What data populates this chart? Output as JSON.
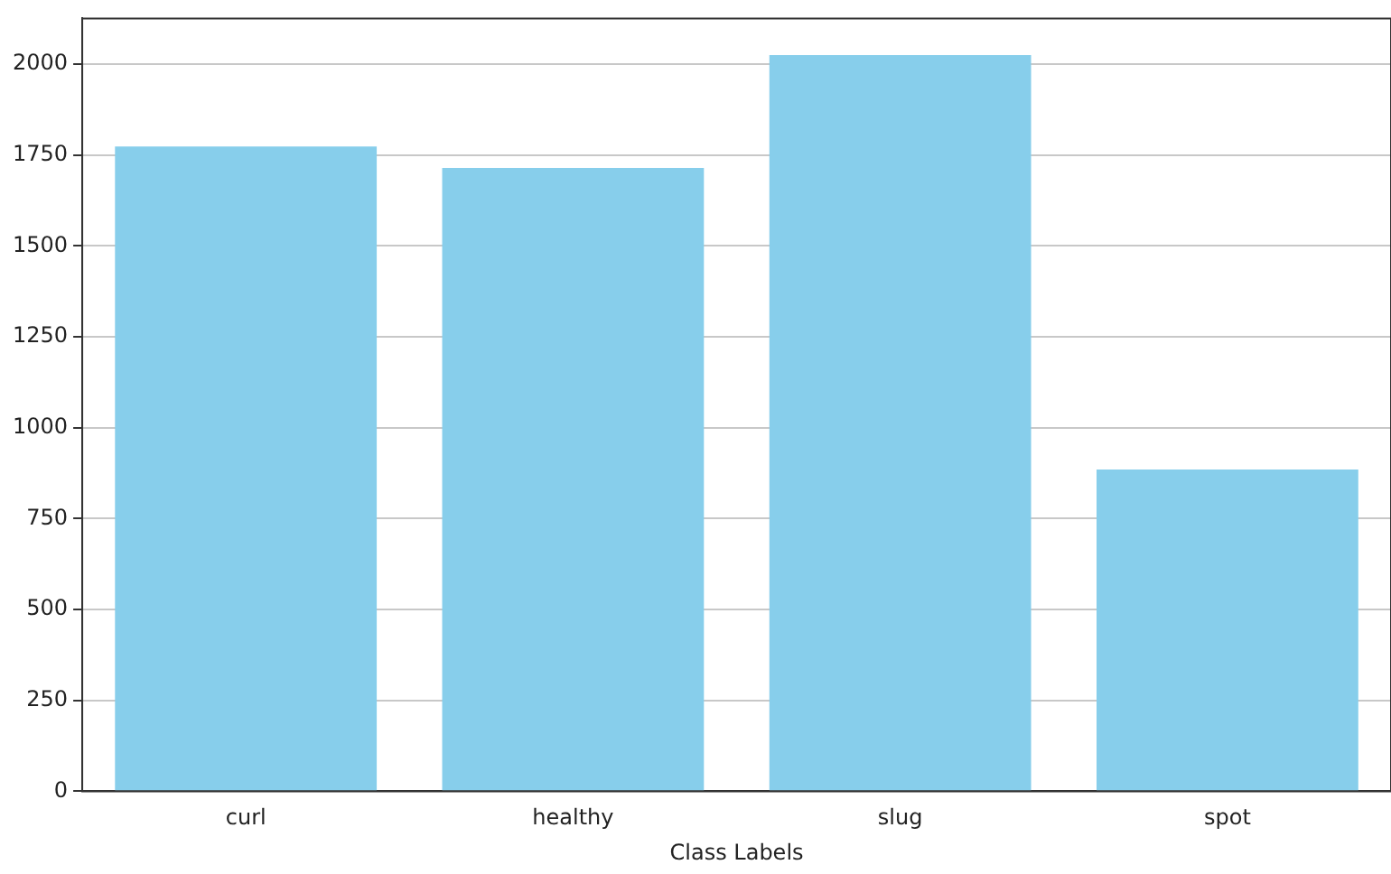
{
  "chart_data": {
    "type": "bar",
    "xlabel": "Class Labels",
    "categories": [
      "curl",
      "healthy",
      "slug",
      "spot"
    ],
    "values": [
      1774,
      1715,
      2025,
      885
    ],
    "color": "#87ceeb",
    "ylim": [
      0,
      2126
    ],
    "yticks": [
      0,
      250,
      500,
      750,
      1000,
      1250,
      1500,
      1750,
      2000
    ],
    "grid": "y"
  }
}
